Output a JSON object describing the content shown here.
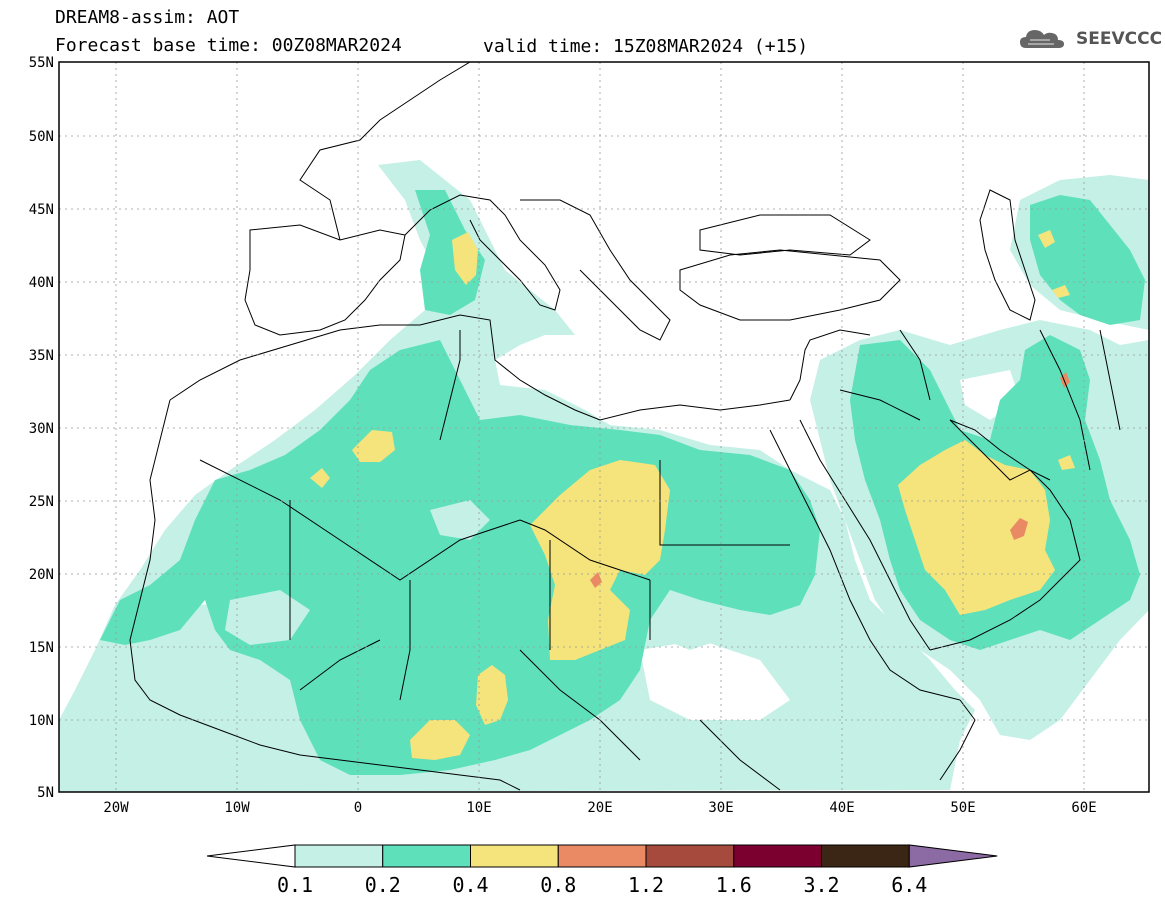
{
  "header": {
    "line1": "DREAM8-assim: AOT",
    "line2": "Forecast base time: 00Z08MAR2024",
    "line3": "valid time: 15Z08MAR2024 (+15)",
    "logo_text": "SEEVCCC"
  },
  "map": {
    "lon_range": [
      -25,
      65
    ],
    "lat_range": [
      5,
      55
    ],
    "lat_labels": [
      "55N",
      "50N",
      "45N",
      "40N",
      "35N",
      "30N",
      "25N",
      "20N",
      "15N",
      "10N",
      "5N"
    ],
    "lon_labels": [
      "20W",
      "10W",
      "0",
      "10E",
      "20E",
      "30E",
      "40E",
      "50E",
      "60E"
    ]
  },
  "legend": {
    "levels": [
      "0.1",
      "0.2",
      "0.4",
      "0.8",
      "1.2",
      "1.6",
      "3.2",
      "6.4"
    ],
    "colors": [
      "#ffffff",
      "#c4f0e6",
      "#5ee0bb",
      "#f5e47b",
      "#e98a64",
      "#a54a3c",
      "#7b0030",
      "#3b2514",
      "#8c6aa4"
    ]
  },
  "colors": {
    "aot_010_020": "#c4f0e6",
    "aot_020_040": "#5ee0bb",
    "aot_040_080": "#f5e47b",
    "aot_080_120": "#e98a64"
  }
}
